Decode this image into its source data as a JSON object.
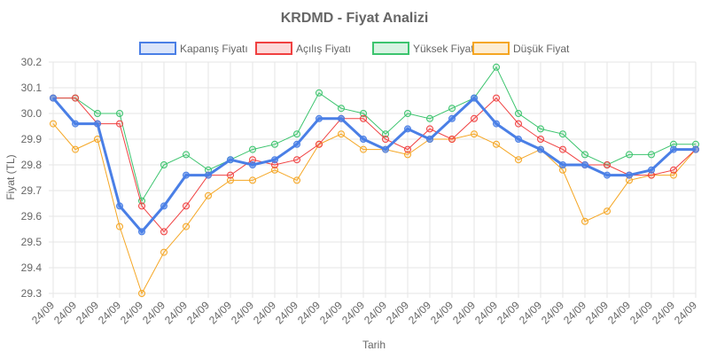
{
  "chart_data": {
    "type": "line",
    "title": "KRDMD - Fiyat Analizi",
    "xlabel": "Tarih",
    "ylabel": "Fiyat (TL)",
    "ylim": [
      29.3,
      30.2
    ],
    "yticks": [
      "29.3",
      "29.4",
      "29.5",
      "29.6",
      "29.7",
      "29.8",
      "29.9",
      "30.0",
      "30.1",
      "30.2"
    ],
    "grid": true,
    "legend_position": "top",
    "categories": [
      "24/09",
      "24/09",
      "24/09",
      "24/09",
      "24/09",
      "24/09",
      "24/09",
      "24/09",
      "24/09",
      "24/09",
      "24/09",
      "24/09",
      "24/09",
      "24/09",
      "24/09",
      "24/09",
      "24/09",
      "24/09",
      "24/09",
      "24/09",
      "24/09",
      "24/09",
      "24/09",
      "24/09",
      "24/09",
      "24/09",
      "24/09",
      "24/09",
      "24/09",
      "24/09"
    ],
    "series": [
      {
        "name": "Kapanış Fiyatı",
        "color": "#4a7fe6",
        "values": [
          30.06,
          29.96,
          29.96,
          29.64,
          29.54,
          29.64,
          29.76,
          29.76,
          29.82,
          29.8,
          29.82,
          29.88,
          29.98,
          29.98,
          29.9,
          29.86,
          29.94,
          29.9,
          29.98,
          30.06,
          29.96,
          29.9,
          29.86,
          29.8,
          29.8,
          29.76,
          29.76,
          29.78,
          29.86,
          29.86
        ]
      },
      {
        "name": "Açılış Fiyatı",
        "color": "#f04040",
        "values": [
          30.06,
          30.06,
          29.96,
          29.96,
          29.64,
          29.54,
          29.64,
          29.76,
          29.76,
          29.82,
          29.8,
          29.82,
          29.88,
          29.98,
          29.98,
          29.9,
          29.86,
          29.94,
          29.9,
          29.98,
          30.06,
          29.96,
          29.9,
          29.86,
          29.8,
          29.8,
          29.76,
          29.76,
          29.78,
          29.86
        ]
      },
      {
        "name": "Yüksek Fiyat",
        "color": "#3cc46e",
        "values": [
          30.06,
          30.06,
          30.0,
          30.0,
          29.66,
          29.8,
          29.84,
          29.78,
          29.82,
          29.86,
          29.88,
          29.92,
          30.08,
          30.02,
          30.0,
          29.92,
          30.0,
          29.98,
          30.02,
          30.06,
          30.18,
          30.0,
          29.94,
          29.92,
          29.84,
          29.8,
          29.84,
          29.84,
          29.88,
          29.88
        ]
      },
      {
        "name": "Düşük Fiyat",
        "color": "#f5a623",
        "values": [
          29.96,
          29.86,
          29.9,
          29.56,
          29.3,
          29.46,
          29.56,
          29.68,
          29.74,
          29.74,
          29.78,
          29.74,
          29.88,
          29.92,
          29.86,
          29.86,
          29.84,
          29.9,
          29.9,
          29.92,
          29.88,
          29.82,
          29.86,
          29.78,
          29.58,
          29.62,
          29.74,
          29.76,
          29.76,
          29.86
        ]
      }
    ]
  }
}
